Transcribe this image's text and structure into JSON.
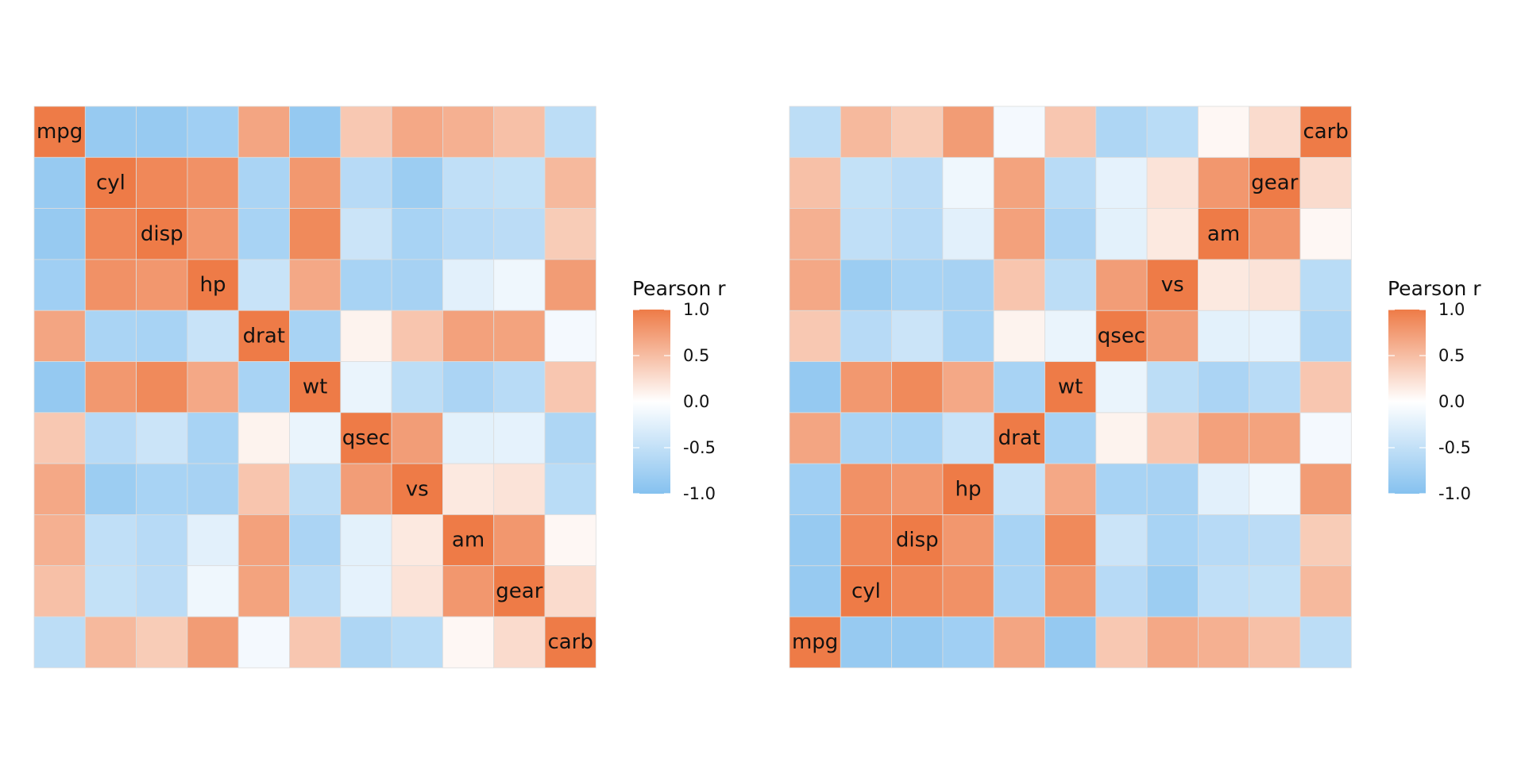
{
  "chart_data": [
    {
      "type": "heatmap",
      "variables": [
        "mpg",
        "cyl",
        "disp",
        "hp",
        "drat",
        "wt",
        "qsec",
        "vs",
        "am",
        "gear",
        "carb"
      ],
      "diagonal_labels": true,
      "row_order": "top-to-bottom",
      "matrix": [
        [
          1.0,
          -0.85,
          -0.85,
          -0.78,
          0.68,
          -0.87,
          0.42,
          0.66,
          0.6,
          0.48,
          -0.55
        ],
        [
          -0.85,
          1.0,
          0.9,
          0.83,
          -0.7,
          0.78,
          -0.59,
          -0.81,
          -0.52,
          -0.49,
          0.53
        ],
        [
          -0.85,
          0.9,
          1.0,
          0.79,
          -0.71,
          0.89,
          -0.43,
          -0.71,
          -0.59,
          -0.56,
          0.39
        ],
        [
          -0.78,
          0.83,
          0.79,
          1.0,
          -0.45,
          0.66,
          -0.71,
          -0.72,
          -0.24,
          -0.13,
          0.75
        ],
        [
          0.68,
          -0.7,
          -0.71,
          -0.45,
          1.0,
          -0.71,
          0.09,
          0.44,
          0.71,
          0.7,
          -0.09
        ],
        [
          -0.87,
          0.78,
          0.89,
          0.66,
          -0.71,
          1.0,
          -0.17,
          -0.55,
          -0.69,
          -0.58,
          0.43
        ],
        [
          0.42,
          -0.59,
          -0.43,
          -0.71,
          0.09,
          -0.17,
          1.0,
          0.74,
          -0.23,
          -0.21,
          -0.66
        ],
        [
          0.66,
          -0.81,
          -0.71,
          -0.72,
          0.44,
          -0.55,
          0.74,
          1.0,
          0.17,
          0.21,
          -0.57
        ],
        [
          0.6,
          -0.52,
          -0.59,
          -0.24,
          0.71,
          -0.69,
          -0.23,
          0.17,
          1.0,
          0.79,
          0.06
        ],
        [
          0.48,
          -0.49,
          -0.56,
          -0.13,
          0.7,
          -0.58,
          -0.21,
          0.21,
          0.79,
          1.0,
          0.27
        ],
        [
          -0.55,
          0.53,
          0.39,
          0.75,
          -0.09,
          0.43,
          -0.66,
          -0.57,
          0.06,
          0.27,
          1.0
        ]
      ],
      "legend": {
        "title": "Pearson r",
        "ticks": [
          1.0,
          0.5,
          0.0,
          -0.5,
          -1.0
        ],
        "tick_labels": [
          "1.0",
          "0.5",
          "0.0",
          "-0.5",
          "-1.0"
        ],
        "position": "right"
      },
      "color_scale": {
        "low": "#85c1ef",
        "mid": "#ffffff",
        "high": "#ee7b47",
        "limits": [
          -1,
          1
        ]
      }
    },
    {
      "type": "heatmap",
      "variables": [
        "mpg",
        "cyl",
        "disp",
        "hp",
        "drat",
        "wt",
        "qsec",
        "vs",
        "am",
        "gear",
        "carb"
      ],
      "diagonal_labels": true,
      "row_order": "bottom-to-top",
      "matrix": [
        [
          1.0,
          -0.85,
          -0.85,
          -0.78,
          0.68,
          -0.87,
          0.42,
          0.66,
          0.6,
          0.48,
          -0.55
        ],
        [
          -0.85,
          1.0,
          0.9,
          0.83,
          -0.7,
          0.78,
          -0.59,
          -0.81,
          -0.52,
          -0.49,
          0.53
        ],
        [
          -0.85,
          0.9,
          1.0,
          0.79,
          -0.71,
          0.89,
          -0.43,
          -0.71,
          -0.59,
          -0.56,
          0.39
        ],
        [
          -0.78,
          0.83,
          0.79,
          1.0,
          -0.45,
          0.66,
          -0.71,
          -0.72,
          -0.24,
          -0.13,
          0.75
        ],
        [
          0.68,
          -0.7,
          -0.71,
          -0.45,
          1.0,
          -0.71,
          0.09,
          0.44,
          0.71,
          0.7,
          -0.09
        ],
        [
          -0.87,
          0.78,
          0.89,
          0.66,
          -0.71,
          1.0,
          -0.17,
          -0.55,
          -0.69,
          -0.58,
          0.43
        ],
        [
          0.42,
          -0.59,
          -0.43,
          -0.71,
          0.09,
          -0.17,
          1.0,
          0.74,
          -0.23,
          -0.21,
          -0.66
        ],
        [
          0.66,
          -0.81,
          -0.71,
          -0.72,
          0.44,
          -0.55,
          0.74,
          1.0,
          0.17,
          0.21,
          -0.57
        ],
        [
          0.6,
          -0.52,
          -0.59,
          -0.24,
          0.71,
          -0.69,
          -0.23,
          0.17,
          1.0,
          0.79,
          0.06
        ],
        [
          0.48,
          -0.49,
          -0.56,
          -0.13,
          0.7,
          -0.58,
          -0.21,
          0.21,
          0.79,
          1.0,
          0.27
        ],
        [
          -0.55,
          0.53,
          0.39,
          0.75,
          -0.09,
          0.43,
          -0.66,
          -0.57,
          0.06,
          0.27,
          1.0
        ]
      ],
      "legend": {
        "title": "Pearson r",
        "ticks": [
          1.0,
          0.5,
          0.0,
          -0.5,
          -1.0
        ],
        "tick_labels": [
          "1.0",
          "0.5",
          "0.0",
          "-0.5",
          "-1.0"
        ],
        "position": "right"
      },
      "color_scale": {
        "low": "#85c1ef",
        "mid": "#ffffff",
        "high": "#ee7b47",
        "limits": [
          -1,
          1
        ]
      }
    }
  ]
}
